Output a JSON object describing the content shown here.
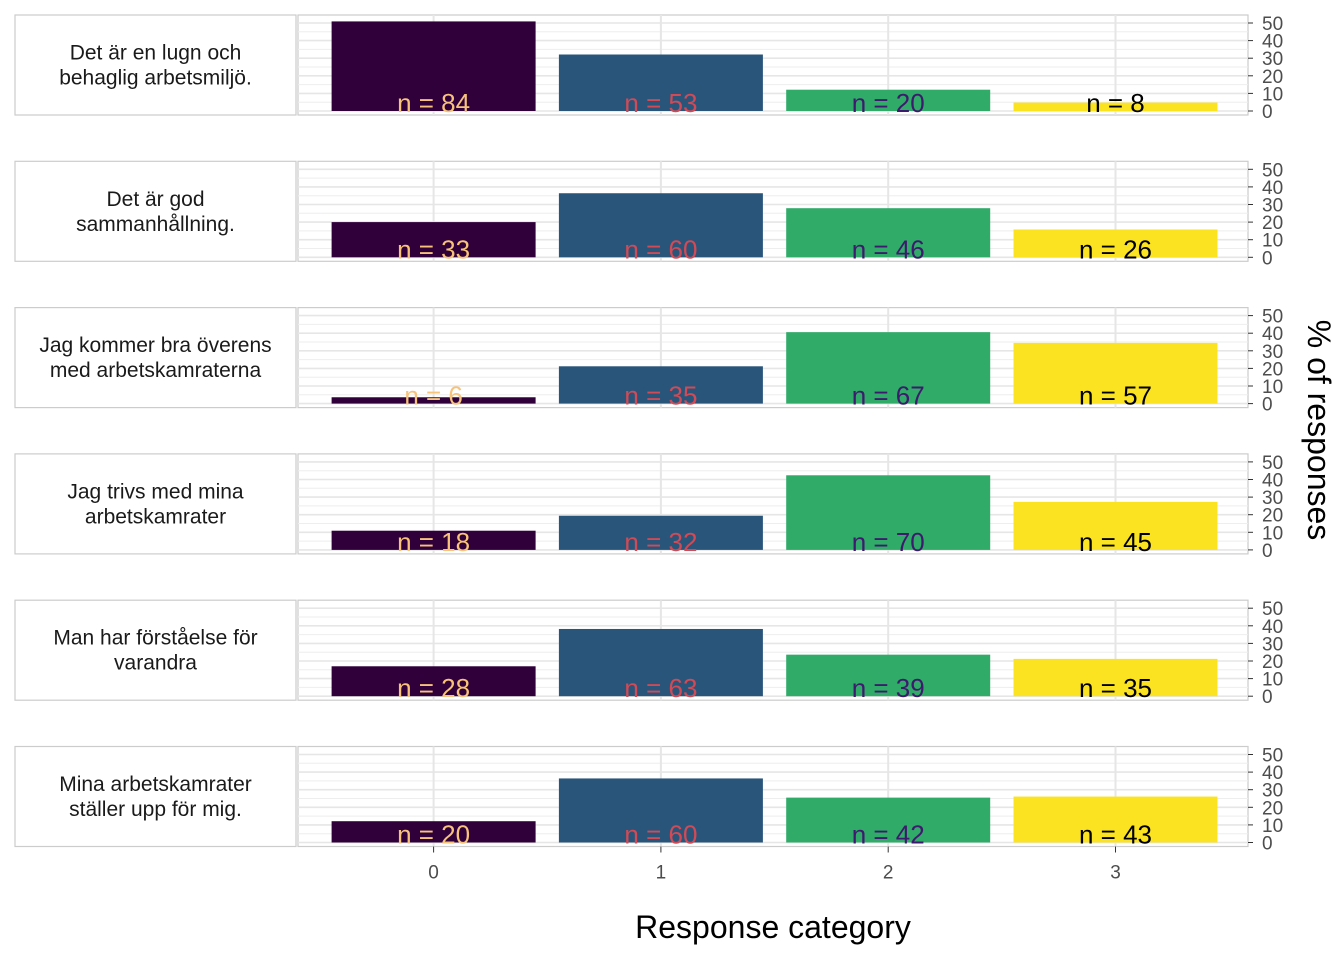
{
  "chart_data": {
    "type": "bar",
    "categories": [
      "0",
      "1",
      "2",
      "3"
    ],
    "xlabel": "Response category",
    "ylabel": "% of responses",
    "ylim": [
      0,
      50
    ],
    "yticks": [
      "0",
      "10",
      "20",
      "30",
      "40",
      "50"
    ],
    "grid": true,
    "colors": [
      "#30003b",
      "#2a557b",
      "#30ab68",
      "#fbe322"
    ],
    "label_colors": [
      "#f7c27a",
      "#d14a55",
      "#3d1a6e",
      "#000000"
    ],
    "panels": [
      {
        "label": "Det är en lugn och behaglig arbetsmiljö.",
        "label_lines": [
          "Det är en lugn och",
          "behaglig arbetsmiljö."
        ],
        "values": [
          50.9,
          32.1,
          12.1,
          4.8
        ],
        "counts": [
          "n = 84",
          "n = 53",
          "n = 20",
          "n = 8"
        ]
      },
      {
        "label": "Det är god sammanhållning.",
        "label_lines": [
          "Det är god",
          "sammanhållning."
        ],
        "values": [
          20.0,
          36.4,
          27.9,
          15.8
        ],
        "counts": [
          "n = 33",
          "n = 60",
          "n = 46",
          "n = 26"
        ]
      },
      {
        "label": "Jag kommer bra överens med arbetskamraterna",
        "label_lines": [
          "Jag kommer bra överens",
          "med arbetskamraterna"
        ],
        "values": [
          3.6,
          21.2,
          40.6,
          34.5
        ],
        "counts": [
          "n = 6",
          "n = 35",
          "n = 67",
          "n = 57"
        ]
      },
      {
        "label": "Jag trivs med mina arbetskamrater",
        "label_lines": [
          "Jag trivs med mina",
          "arbetskamrater"
        ],
        "values": [
          10.9,
          19.4,
          42.4,
          27.3
        ],
        "counts": [
          "n = 18",
          "n = 32",
          "n = 70",
          "n = 45"
        ]
      },
      {
        "label": "Man har förståelse för varandra",
        "label_lines": [
          "Man har förståelse för",
          "varandra"
        ],
        "values": [
          17.0,
          38.2,
          23.6,
          21.2
        ],
        "counts": [
          "n = 28",
          "n = 63",
          "n = 39",
          "n = 35"
        ]
      },
      {
        "label": "Mina arbetskamrater ställer upp för mig.",
        "label_lines": [
          "Mina arbetskamrater",
          "ställer upp för mig."
        ],
        "values": [
          12.1,
          36.4,
          25.5,
          26.1
        ],
        "counts": [
          "n = 20",
          "n = 60",
          "n = 42",
          "n = 43"
        ]
      }
    ]
  }
}
